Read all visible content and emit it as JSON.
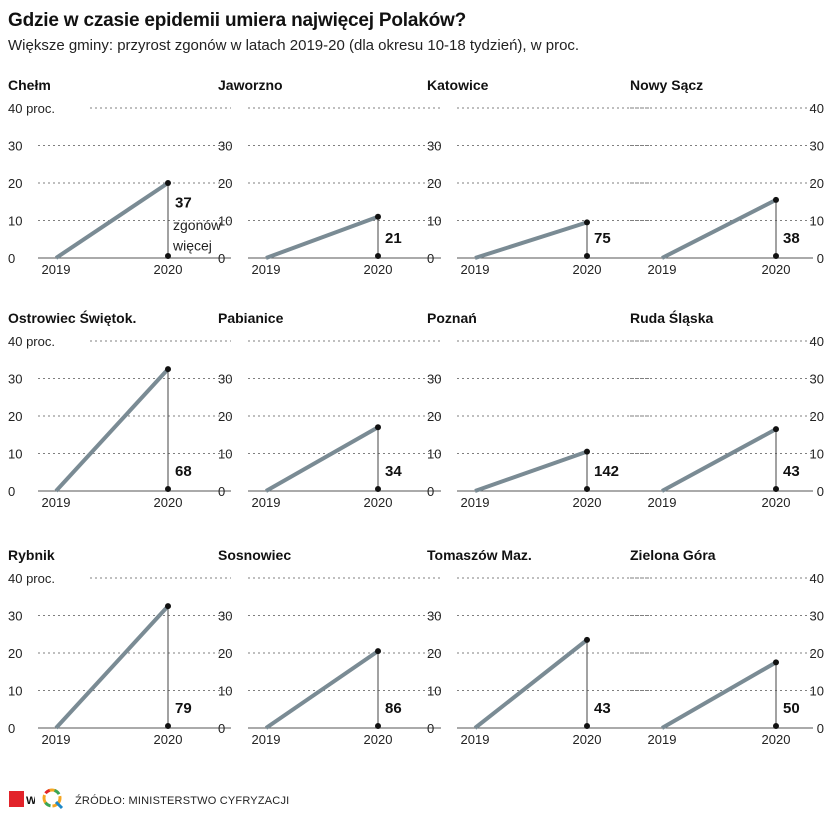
{
  "header": {
    "title": "Gdzie w czasie epidemii umiera najwięcej Polaków?",
    "subtitle": "Większe gminy: przyrost zgonów w latach 2019-20 (dla okresu 10-18 tydzień), w proc."
  },
  "footer": {
    "source": "ŹRÓDŁO: MINISTERSTWO CYFRYZACJI"
  },
  "axis": {
    "ymax_label": "40 proc.",
    "ticks": [
      "0",
      "10",
      "20",
      "30",
      "40"
    ],
    "annotation_line1": "zgonów",
    "annotation_line2": "więcej"
  },
  "colors": {
    "line": "#7a8b94",
    "dot": "#111111",
    "grid": "#555555"
  },
  "chart_data": [
    {
      "type": "line",
      "title": "Chełm",
      "x": [
        "2019",
        "2020"
      ],
      "y": [
        0,
        20
      ],
      "label": "37",
      "ylim": [
        0,
        40
      ]
    },
    {
      "type": "line",
      "title": "Jaworzno",
      "x": [
        "2019",
        "2020"
      ],
      "y": [
        0,
        11
      ],
      "label": "21",
      "ylim": [
        0,
        40
      ]
    },
    {
      "type": "line",
      "title": "Katowice",
      "x": [
        "2019",
        "2020"
      ],
      "y": [
        0,
        9.5
      ],
      "label": "75",
      "ylim": [
        0,
        40
      ]
    },
    {
      "type": "line",
      "title": "Nowy Sącz",
      "x": [
        "2019",
        "2020"
      ],
      "y": [
        0,
        15.5
      ],
      "label": "38",
      "ylim": [
        0,
        40
      ]
    },
    {
      "type": "line",
      "title": "Ostrowiec Świętok.",
      "x": [
        "2019",
        "2020"
      ],
      "y": [
        0,
        32.5
      ],
      "label": "68",
      "ylim": [
        0,
        40
      ]
    },
    {
      "type": "line",
      "title": "Pabianice",
      "x": [
        "2019",
        "2020"
      ],
      "y": [
        0,
        17
      ],
      "label": "34",
      "ylim": [
        0,
        40
      ]
    },
    {
      "type": "line",
      "title": "Poznań",
      "x": [
        "2019",
        "2020"
      ],
      "y": [
        0,
        10.5
      ],
      "label": "142",
      "ylim": [
        0,
        40
      ]
    },
    {
      "type": "line",
      "title": "Ruda Śląska",
      "x": [
        "2019",
        "2020"
      ],
      "y": [
        0,
        16.5
      ],
      "label": "43",
      "ylim": [
        0,
        40
      ]
    },
    {
      "type": "line",
      "title": "Rybnik",
      "x": [
        "2019",
        "2020"
      ],
      "y": [
        0,
        32.5
      ],
      "label": "79",
      "ylim": [
        0,
        40
      ]
    },
    {
      "type": "line",
      "title": "Sosnowiec",
      "x": [
        "2019",
        "2020"
      ],
      "y": [
        0,
        20.5
      ],
      "label": "86",
      "ylim": [
        0,
        40
      ]
    },
    {
      "type": "line",
      "title": "Tomaszów Maz.",
      "x": [
        "2019",
        "2020"
      ],
      "y": [
        0,
        23.5
      ],
      "label": "43",
      "ylim": [
        0,
        40
      ]
    },
    {
      "type": "line",
      "title": "Zielona Góra",
      "x": [
        "2019",
        "2020"
      ],
      "y": [
        0,
        17.5
      ],
      "label": "50",
      "ylim": [
        0,
        40
      ]
    }
  ]
}
